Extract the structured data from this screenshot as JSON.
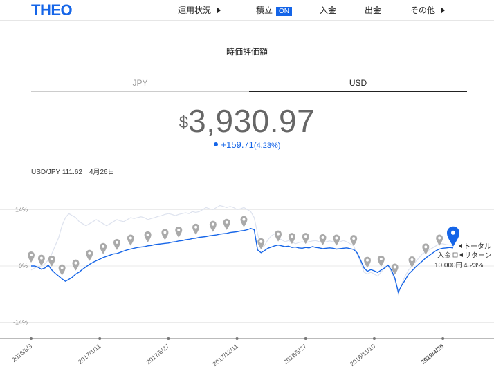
{
  "header": {
    "logo": "THEO",
    "nav": [
      {
        "label": "運用状況",
        "arrow": true
      },
      {
        "label": "積立",
        "badge": "ON"
      },
      {
        "label": "入金"
      },
      {
        "label": "出金"
      },
      {
        "label": "その他",
        "arrow": true
      }
    ]
  },
  "section_title": "時価評価額",
  "tabs": [
    "JPY",
    "USD"
  ],
  "active_tab": "USD",
  "valuation": {
    "currency": "$",
    "amount": "3,930.97",
    "change": "+159.71",
    "change_pct": "(4.23%)"
  },
  "fx": {
    "label": "USD/JPY 111.62",
    "date": "4月26日"
  },
  "chart_labels": {
    "total_return": "トータル",
    "total_return_2": "リターン",
    "deposit": "入金",
    "deposit_amount": "10,000円",
    "return_pct": "4.23%"
  },
  "colors": {
    "accent": "#1565e8",
    "marker": "#aaaaaa",
    "benchmark": "#dde2ee"
  },
  "chart_data": {
    "type": "line",
    "ylim": [
      -18,
      18
    ],
    "yticks": [
      "14%",
      "0%",
      "-14%"
    ],
    "ytick_values": [
      14,
      0,
      -14
    ],
    "x_ticks": [
      "2016/8/3",
      "2017/1/11",
      "2017/6/27",
      "2017/12/11",
      "2018/5/27",
      "2018/11/10",
      "2019/4/26"
    ],
    "x_tick_index": [
      0,
      20,
      40,
      60,
      80,
      100,
      120
    ],
    "series": [
      {
        "values": [
          0,
          0,
          -0.3,
          -0.8,
          -0.5,
          0.2,
          -1,
          -1.8,
          -2.5,
          -3.2,
          -3.8,
          -3.3,
          -2.8,
          -2,
          -1.5,
          -0.8,
          -0.2,
          0.4,
          0.9,
          1.3,
          1.7,
          2.1,
          2.4,
          2.7,
          3,
          3.1,
          3.4,
          3.7,
          4,
          4.2,
          4.4,
          4.6,
          4.7,
          4.8,
          5,
          5.1,
          5.3,
          5.4,
          5.5,
          5.6,
          5.7,
          5.9,
          6,
          6.2,
          6.3,
          6.5,
          6.6,
          6.8,
          6.9,
          7.1,
          7.2,
          7.3,
          7.5,
          7.6,
          7.7,
          7.9,
          8,
          8.1,
          8.3,
          8.4,
          8.5,
          8.7,
          8.8,
          9,
          9.3,
          9,
          4,
          3.3,
          3.8,
          4.4,
          4.7,
          5,
          5.2,
          5,
          4.8,
          4.9,
          4.6,
          4.7,
          4.5,
          4.4,
          4.6,
          4.5,
          4.8,
          4.6,
          4.5,
          4.3,
          4.4,
          4.5,
          4.4,
          4.2,
          4.3,
          4.4,
          4.5,
          4.3,
          4.1,
          3.3,
          1.5,
          -0.5,
          -1.3,
          -0.9,
          -1.2,
          -1.6,
          -1,
          -0.5,
          0.2,
          -1,
          -3,
          -6.5,
          -4.8,
          -3.5,
          -2,
          -1.2,
          -0.3,
          0.5,
          1.2,
          2,
          2.6,
          3.2,
          3.8,
          4.2,
          4.4,
          4.5,
          4.6,
          4.5
        ]
      },
      {
        "values": [
          -1,
          -0.5,
          -0.2,
          0,
          0.5,
          1.5,
          3,
          5,
          7,
          10,
          12,
          13,
          12.5,
          12,
          11,
          10.5,
          10,
          10.5,
          11,
          11.5,
          11,
          10.5,
          10,
          10.5,
          11,
          11.5,
          11.2,
          11,
          11.5,
          12,
          11.8,
          12,
          12.2,
          12,
          11.5,
          11.8,
          12,
          12.3,
          12.5,
          12.8,
          13,
          12.8,
          12.5,
          12.8,
          13,
          13.2,
          13,
          13.5,
          13.3,
          13.5,
          14,
          14.5,
          14.2,
          14,
          14.5,
          15,
          14.8,
          14.5,
          14.8,
          14.5,
          14,
          14.2,
          14.5,
          14,
          13.5,
          12,
          8,
          4.5,
          5,
          6.5,
          7.5,
          8,
          7,
          6.5,
          6,
          6.3,
          6,
          5.5,
          5.8,
          6,
          5.8,
          6,
          6.2,
          6.3,
          6,
          5.8,
          6,
          6.2,
          6,
          5.8,
          6,
          6.3,
          6,
          5.5,
          5,
          3,
          1,
          -1.5,
          -2,
          -1.5,
          -2,
          -2.5,
          -1.5,
          -0.5,
          0,
          -1.5,
          -3.5,
          -7,
          -4.5,
          -2.5,
          -1,
          0,
          1,
          2,
          3,
          3.5,
          4,
          4.5,
          5,
          5.5,
          5.5,
          5.3,
          5.2,
          5
        ]
      }
    ],
    "markers": {
      "x_index": [
        0,
        3,
        6,
        9,
        13,
        17,
        21,
        25,
        29,
        34,
        39,
        43,
        48,
        53,
        57,
        62,
        67,
        72,
        76,
        80,
        85,
        89,
        94,
        98,
        102,
        106,
        111,
        115,
        119,
        123
      ]
    }
  }
}
